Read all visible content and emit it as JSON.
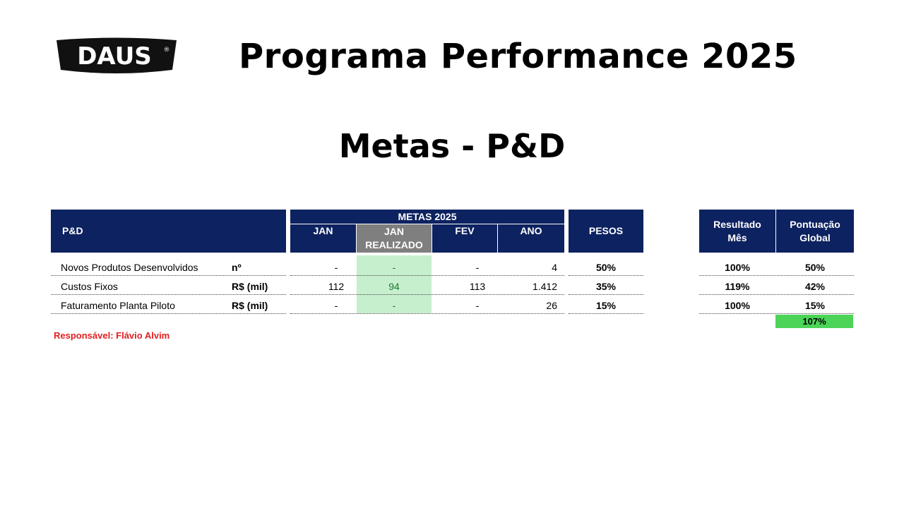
{
  "logo": {
    "text": "DAUS",
    "mark": "®"
  },
  "title": "Programa Performance 2025",
  "subtitle": "Metas - P&D",
  "table": {
    "headers": {
      "area": "P&D",
      "metas_group": "METAS 2025",
      "jan": "JAN",
      "jan_realizado_1": "JAN",
      "jan_realizado_2": "REALIZADO",
      "fev": "FEV",
      "ano": "ANO",
      "pesos": "PESOS",
      "resultado_1": "Resultado",
      "resultado_2": "Mês",
      "pontuacao_1": "Pontuação",
      "pontuacao_2": "Global"
    },
    "rows": [
      {
        "name": "Novos Produtos Desenvolvidos",
        "unit": "nº",
        "jan": "-",
        "jan_realizado": "-",
        "fev": "-",
        "ano": "4",
        "peso": "50%",
        "resultado": "100%",
        "pontuacao": "50%"
      },
      {
        "name": "Custos Fixos",
        "unit": "R$ (mil)",
        "jan": "112",
        "jan_realizado": "94",
        "fev": "113",
        "ano": "1.412",
        "peso": "35%",
        "resultado": "119%",
        "pontuacao": "42%"
      },
      {
        "name": "Faturamento Planta Piloto",
        "unit": "R$ (mil)",
        "jan": "-",
        "jan_realizado": "-",
        "fev": "-",
        "ano": "26",
        "peso": "15%",
        "resultado": "100%",
        "pontuacao": "15%"
      }
    ],
    "total_pontuacao": "107%"
  },
  "responsavel": "Responsável: Flávio Alvim",
  "colors": {
    "header_bg": "#0d2260",
    "header_gray": "#7f7f7f",
    "realizado_bg": "#c6efce",
    "realizado_text": "#1f7a2e",
    "total_bg": "#4cd459",
    "responsavel_text": "#e02020"
  }
}
